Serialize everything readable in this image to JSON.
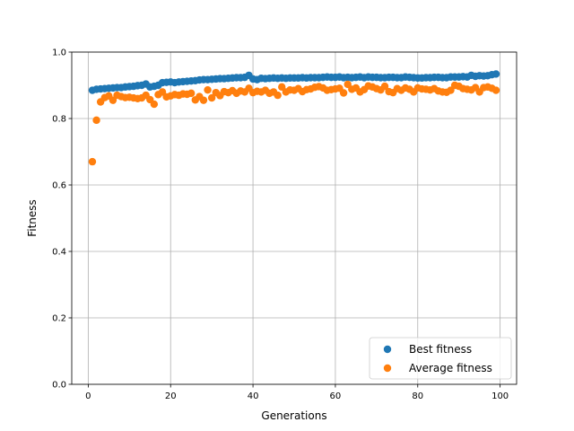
{
  "chart_data": {
    "type": "scatter",
    "title": "",
    "xlabel": "Generations",
    "ylabel": "Fitness",
    "xlim": [
      -4,
      104
    ],
    "ylim": [
      0.0,
      1.0
    ],
    "xticks": [
      0,
      20,
      40,
      60,
      80,
      100
    ],
    "yticks": [
      0.0,
      0.2,
      0.4,
      0.6,
      0.8,
      1.0
    ],
    "xtick_labels": [
      "0",
      "20",
      "40",
      "60",
      "80",
      "100"
    ],
    "ytick_labels": [
      "0.0",
      "0.2",
      "0.4",
      "0.6",
      "0.8",
      "1.0"
    ],
    "grid": true,
    "legend_position": "lower-right",
    "x": [
      1,
      2,
      3,
      4,
      5,
      6,
      7,
      8,
      9,
      10,
      11,
      12,
      13,
      14,
      15,
      16,
      17,
      18,
      19,
      20,
      21,
      22,
      23,
      24,
      25,
      26,
      27,
      28,
      29,
      30,
      31,
      32,
      33,
      34,
      35,
      36,
      37,
      38,
      39,
      40,
      41,
      42,
      43,
      44,
      45,
      46,
      47,
      48,
      49,
      50,
      51,
      52,
      53,
      54,
      55,
      56,
      57,
      58,
      59,
      60,
      61,
      62,
      63,
      64,
      65,
      66,
      67,
      68,
      69,
      70,
      71,
      72,
      73,
      74,
      75,
      76,
      77,
      78,
      79,
      80,
      81,
      82,
      83,
      84,
      85,
      86,
      87,
      88,
      89,
      90,
      91,
      92,
      93,
      94,
      95,
      96,
      97,
      98,
      99
    ],
    "series": [
      {
        "name": "Best fitness",
        "color": "#1f77b4",
        "values": [
          0.885,
          0.888,
          0.889,
          0.89,
          0.891,
          0.892,
          0.893,
          0.893,
          0.895,
          0.896,
          0.897,
          0.899,
          0.9,
          0.904,
          0.895,
          0.897,
          0.9,
          0.908,
          0.909,
          0.91,
          0.908,
          0.91,
          0.911,
          0.912,
          0.913,
          0.914,
          0.916,
          0.917,
          0.917,
          0.918,
          0.919,
          0.92,
          0.92,
          0.921,
          0.922,
          0.923,
          0.923,
          0.924,
          0.93,
          0.919,
          0.917,
          0.921,
          0.92,
          0.921,
          0.922,
          0.921,
          0.922,
          0.921,
          0.922,
          0.922,
          0.922,
          0.923,
          0.922,
          0.923,
          0.923,
          0.923,
          0.924,
          0.925,
          0.924,
          0.924,
          0.925,
          0.923,
          0.924,
          0.923,
          0.924,
          0.925,
          0.923,
          0.925,
          0.924,
          0.924,
          0.923,
          0.923,
          0.924,
          0.924,
          0.923,
          0.923,
          0.925,
          0.924,
          0.923,
          0.922,
          0.922,
          0.923,
          0.923,
          0.924,
          0.924,
          0.923,
          0.923,
          0.925,
          0.925,
          0.925,
          0.926,
          0.925,
          0.93,
          0.927,
          0.929,
          0.928,
          0.929,
          0.932,
          0.934
        ]
      },
      {
        "name": "Average fitness",
        "color": "#ff7f0e",
        "values": [
          0.67,
          0.795,
          0.85,
          0.863,
          0.868,
          0.855,
          0.87,
          0.866,
          0.863,
          0.864,
          0.862,
          0.86,
          0.862,
          0.87,
          0.857,
          0.843,
          0.872,
          0.88,
          0.865,
          0.868,
          0.872,
          0.87,
          0.874,
          0.873,
          0.876,
          0.856,
          0.866,
          0.855,
          0.886,
          0.862,
          0.878,
          0.869,
          0.881,
          0.878,
          0.884,
          0.876,
          0.883,
          0.88,
          0.891,
          0.878,
          0.882,
          0.88,
          0.885,
          0.876,
          0.88,
          0.87,
          0.895,
          0.88,
          0.886,
          0.885,
          0.89,
          0.881,
          0.887,
          0.889,
          0.894,
          0.896,
          0.892,
          0.885,
          0.887,
          0.889,
          0.891,
          0.877,
          0.903,
          0.888,
          0.892,
          0.88,
          0.887,
          0.898,
          0.895,
          0.89,
          0.886,
          0.897,
          0.881,
          0.878,
          0.89,
          0.885,
          0.892,
          0.888,
          0.88,
          0.892,
          0.889,
          0.888,
          0.886,
          0.89,
          0.883,
          0.88,
          0.879,
          0.885,
          0.9,
          0.897,
          0.89,
          0.888,
          0.886,
          0.893,
          0.88,
          0.893,
          0.895,
          0.891,
          0.885
        ]
      }
    ]
  }
}
